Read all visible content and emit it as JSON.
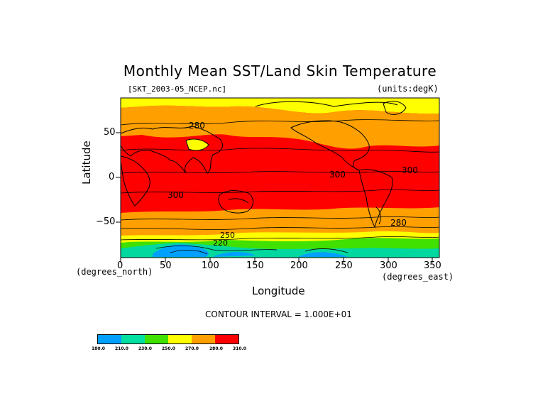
{
  "title": "Monthly Mean SST/Land Skin Temperature",
  "file_label": "[SKT_2003-05_NCEP.nc]",
  "units_label": "(units:degK)",
  "x_axis": {
    "label": "Longitude",
    "unit_note": "(degrees_east)",
    "ticks": [
      "0",
      "50",
      "100",
      "150",
      "200",
      "250",
      "300",
      "350"
    ],
    "range": [
      0,
      357.5
    ]
  },
  "y_axis": {
    "label": "Latitude",
    "unit_note": "(degrees_north)",
    "ticks": [
      "50",
      "0",
      "−50"
    ],
    "range": [
      -90,
      90
    ]
  },
  "contour_interval": "CONTOUR INTERVAL = 1.000E+01",
  "contour_labels": [
    "280",
    "300",
    "300",
    "300",
    "280",
    "250",
    "220"
  ],
  "legend": {
    "labels": [
      "180.0",
      "210.0",
      "230.0",
      "250.0",
      "270.0",
      "280.0",
      "310.0"
    ],
    "colors": [
      "#00a0ff",
      "#00e0a0",
      "#00c878",
      "#40e000",
      "#ffff00",
      "#ffa000",
      "#ff0000"
    ]
  },
  "colors": {
    "warm": "#ff0000",
    "mild": "#ffa000",
    "cool": "#ffff00",
    "cold": "#40e000",
    "colder": "#00d8a0",
    "coldest": "#00a0ff"
  }
}
